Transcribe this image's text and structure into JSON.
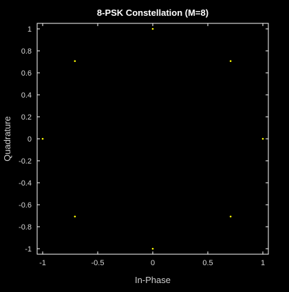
{
  "chart_data": {
    "type": "scatter",
    "title": "8-PSK Constellation (M=8)",
    "xlabel": "In-Phase",
    "ylabel": "Quadrature",
    "xlim": [
      -1.05,
      1.05
    ],
    "ylim": [
      -1.05,
      1.05
    ],
    "xticks": [
      -1,
      -0.5,
      0,
      0.5,
      1
    ],
    "xtick_labels": [
      "-1",
      "-0.5",
      "0",
      "0.5",
      "1"
    ],
    "yticks": [
      -1,
      -0.8,
      -0.6,
      -0.4,
      -0.2,
      0,
      0.2,
      0.4,
      0.6,
      0.8,
      1
    ],
    "ytick_labels": [
      "-1",
      "-0.8",
      "-0.6",
      "-0.4",
      "-0.2",
      "0",
      "0.2",
      "0.4",
      "0.6",
      "0.8",
      "1"
    ],
    "grid": false,
    "series": [
      {
        "color": "#ffff00",
        "marker": "point",
        "points": [
          {
            "x": 1,
            "y": 0
          },
          {
            "x": 0.7071,
            "y": 0.7071
          },
          {
            "x": 0,
            "y": 1
          },
          {
            "x": -0.7071,
            "y": 0.7071
          },
          {
            "x": -1,
            "y": 0
          },
          {
            "x": -0.7071,
            "y": -0.7071
          },
          {
            "x": 0,
            "y": -1
          },
          {
            "x": 0.7071,
            "y": -0.7071
          }
        ]
      }
    ],
    "colors": {
      "background": "#000000",
      "axes": "#ffffff",
      "text": "#d9d9d9",
      "title": "#ffffff"
    }
  }
}
